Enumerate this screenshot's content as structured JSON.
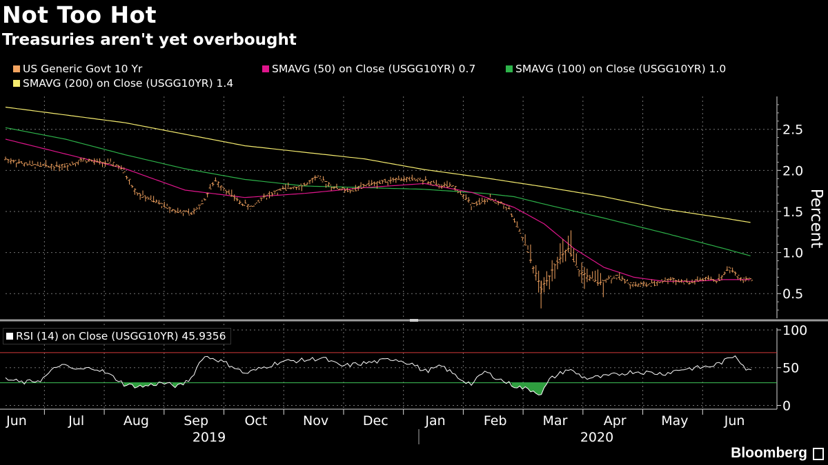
{
  "header": {
    "title": "Not Too Hot",
    "subtitle": "Treasuries aren't yet overbought"
  },
  "brand": "Bloomberg",
  "chart_data": {
    "type": "line",
    "legend": [
      {
        "name": "US Generic Govt 10 Yr",
        "color": "#f4a460"
      },
      {
        "name": "SMAVG (50)  on Close (USGG10YR) 0.7",
        "color": "#e0158c"
      },
      {
        "name": "SMAVG (100)  on Close (USGG10YR) 1.0",
        "color": "#2db34a"
      },
      {
        "name": "SMAVG (200)  on Close (USGG10YR) 1.4",
        "color": "#f5ec6f"
      }
    ],
    "ylabel": "Percent",
    "ylim": [
      0.2,
      2.9
    ],
    "yticks": [
      "0.5",
      "1.0",
      "1.5",
      "2.0",
      "2.5"
    ],
    "months": [
      "Jun",
      "Jul",
      "Aug",
      "Sep",
      "Oct",
      "Nov",
      "Dec",
      "Jan",
      "Feb",
      "Mar",
      "Apr",
      "May",
      "Jun"
    ],
    "years": [
      "2019",
      "2020"
    ],
    "t_range": [
      0,
      12.8
    ],
    "price_anchors": [
      [
        0,
        2.14
      ],
      [
        0.3,
        2.08
      ],
      [
        0.7,
        2.05
      ],
      [
        1.0,
        2.06
      ],
      [
        1.3,
        2.13
      ],
      [
        1.5,
        2.1
      ],
      [
        1.8,
        2.08
      ],
      [
        1.95,
        2.02
      ],
      [
        2.2,
        1.72
      ],
      [
        2.5,
        1.62
      ],
      [
        2.8,
        1.52
      ],
      [
        3.1,
        1.47
      ],
      [
        3.3,
        1.62
      ],
      [
        3.5,
        1.88
      ],
      [
        3.7,
        1.75
      ],
      [
        3.9,
        1.62
      ],
      [
        4.1,
        1.55
      ],
      [
        4.3,
        1.67
      ],
      [
        4.6,
        1.76
      ],
      [
        4.8,
        1.8
      ],
      [
        5.0,
        1.82
      ],
      [
        5.2,
        1.92
      ],
      [
        5.5,
        1.79
      ],
      [
        5.8,
        1.75
      ],
      [
        6.0,
        1.82
      ],
      [
        6.3,
        1.86
      ],
      [
        6.5,
        1.9
      ],
      [
        6.8,
        1.89
      ],
      [
        7.0,
        1.88
      ],
      [
        7.2,
        1.82
      ],
      [
        7.5,
        1.8
      ],
      [
        7.8,
        1.58
      ],
      [
        8.1,
        1.65
      ],
      [
        8.4,
        1.55
      ],
      [
        8.7,
        1.08
      ],
      [
        8.95,
        0.55
      ],
      [
        9.2,
        0.87
      ],
      [
        9.4,
        1.05
      ],
      [
        9.6,
        0.75
      ],
      [
        9.9,
        0.64
      ],
      [
        10.2,
        0.71
      ],
      [
        10.5,
        0.61
      ],
      [
        10.8,
        0.61
      ],
      [
        11.1,
        0.68
      ],
      [
        11.4,
        0.63
      ],
      [
        11.7,
        0.68
      ],
      [
        11.9,
        0.66
      ],
      [
        12.1,
        0.81
      ],
      [
        12.3,
        0.68
      ],
      [
        12.5,
        0.66
      ]
    ],
    "sma50_anchors": [
      [
        0,
        2.38
      ],
      [
        1.0,
        2.2
      ],
      [
        2.0,
        2.02
      ],
      [
        3.0,
        1.76
      ],
      [
        4.0,
        1.67
      ],
      [
        5.0,
        1.72
      ],
      [
        6.0,
        1.79
      ],
      [
        7.0,
        1.84
      ],
      [
        7.8,
        1.73
      ],
      [
        8.5,
        1.55
      ],
      [
        9.0,
        1.35
      ],
      [
        9.5,
        1.05
      ],
      [
        10.0,
        0.82
      ],
      [
        10.5,
        0.7
      ],
      [
        11.0,
        0.65
      ],
      [
        11.5,
        0.65
      ],
      [
        12.0,
        0.67
      ],
      [
        12.5,
        0.67
      ]
    ],
    "sma100_anchors": [
      [
        0,
        2.52
      ],
      [
        1.0,
        2.38
      ],
      [
        2.0,
        2.19
      ],
      [
        3.0,
        2.02
      ],
      [
        4.0,
        1.89
      ],
      [
        5.0,
        1.81
      ],
      [
        6.0,
        1.79
      ],
      [
        7.0,
        1.77
      ],
      [
        8.0,
        1.72
      ],
      [
        8.5,
        1.68
      ],
      [
        9.0,
        1.59
      ],
      [
        10.0,
        1.42
      ],
      [
        11.0,
        1.24
      ],
      [
        12.0,
        1.05
      ],
      [
        12.5,
        0.95
      ]
    ],
    "sma200_anchors": [
      [
        0,
        2.77
      ],
      [
        2.0,
        2.58
      ],
      [
        4.0,
        2.3
      ],
      [
        6.0,
        2.14
      ],
      [
        7.0,
        2.01
      ],
      [
        8.0,
        1.91
      ],
      [
        9.0,
        1.8
      ],
      [
        10.0,
        1.68
      ],
      [
        11.0,
        1.53
      ],
      [
        12.0,
        1.42
      ],
      [
        12.5,
        1.36
      ]
    ],
    "rsi": {
      "label": "RSI (14)  on Close (USGG10YR) 45.9356",
      "ylim": [
        -5,
        110
      ],
      "yticks": [
        "0",
        "50",
        "100"
      ],
      "overbought": 70,
      "oversold": 30,
      "anchors": [
        [
          0,
          35
        ],
        [
          0.3,
          30
        ],
        [
          0.6,
          34
        ],
        [
          0.9,
          54
        ],
        [
          1.2,
          47
        ],
        [
          1.5,
          50
        ],
        [
          1.7,
          42
        ],
        [
          1.9,
          33
        ],
        [
          2.0,
          27
        ],
        [
          2.3,
          25
        ],
        [
          2.6,
          30
        ],
        [
          2.9,
          25
        ],
        [
          3.1,
          36
        ],
        [
          3.3,
          65
        ],
        [
          3.5,
          62
        ],
        [
          3.8,
          52
        ],
        [
          4.0,
          42
        ],
        [
          4.3,
          50
        ],
        [
          4.6,
          58
        ],
        [
          5.0,
          60
        ],
        [
          5.3,
          63
        ],
        [
          5.6,
          52
        ],
        [
          5.9,
          55
        ],
        [
          6.2,
          58
        ],
        [
          6.5,
          62
        ],
        [
          6.8,
          55
        ],
        [
          7.0,
          45
        ],
        [
          7.3,
          52
        ],
        [
          7.6,
          35
        ],
        [
          7.8,
          28
        ],
        [
          8.0,
          45
        ],
        [
          8.3,
          33
        ],
        [
          8.5,
          26
        ],
        [
          8.8,
          20
        ],
        [
          8.95,
          15
        ],
        [
          9.1,
          35
        ],
        [
          9.4,
          48
        ],
        [
          9.7,
          36
        ],
        [
          10.0,
          38
        ],
        [
          10.5,
          45
        ],
        [
          11.0,
          42
        ],
        [
          11.3,
          48
        ],
        [
          11.6,
          50
        ],
        [
          11.8,
          52
        ],
        [
          12.0,
          58
        ],
        [
          12.2,
          67
        ],
        [
          12.4,
          46
        ],
        [
          12.5,
          46
        ]
      ]
    }
  }
}
